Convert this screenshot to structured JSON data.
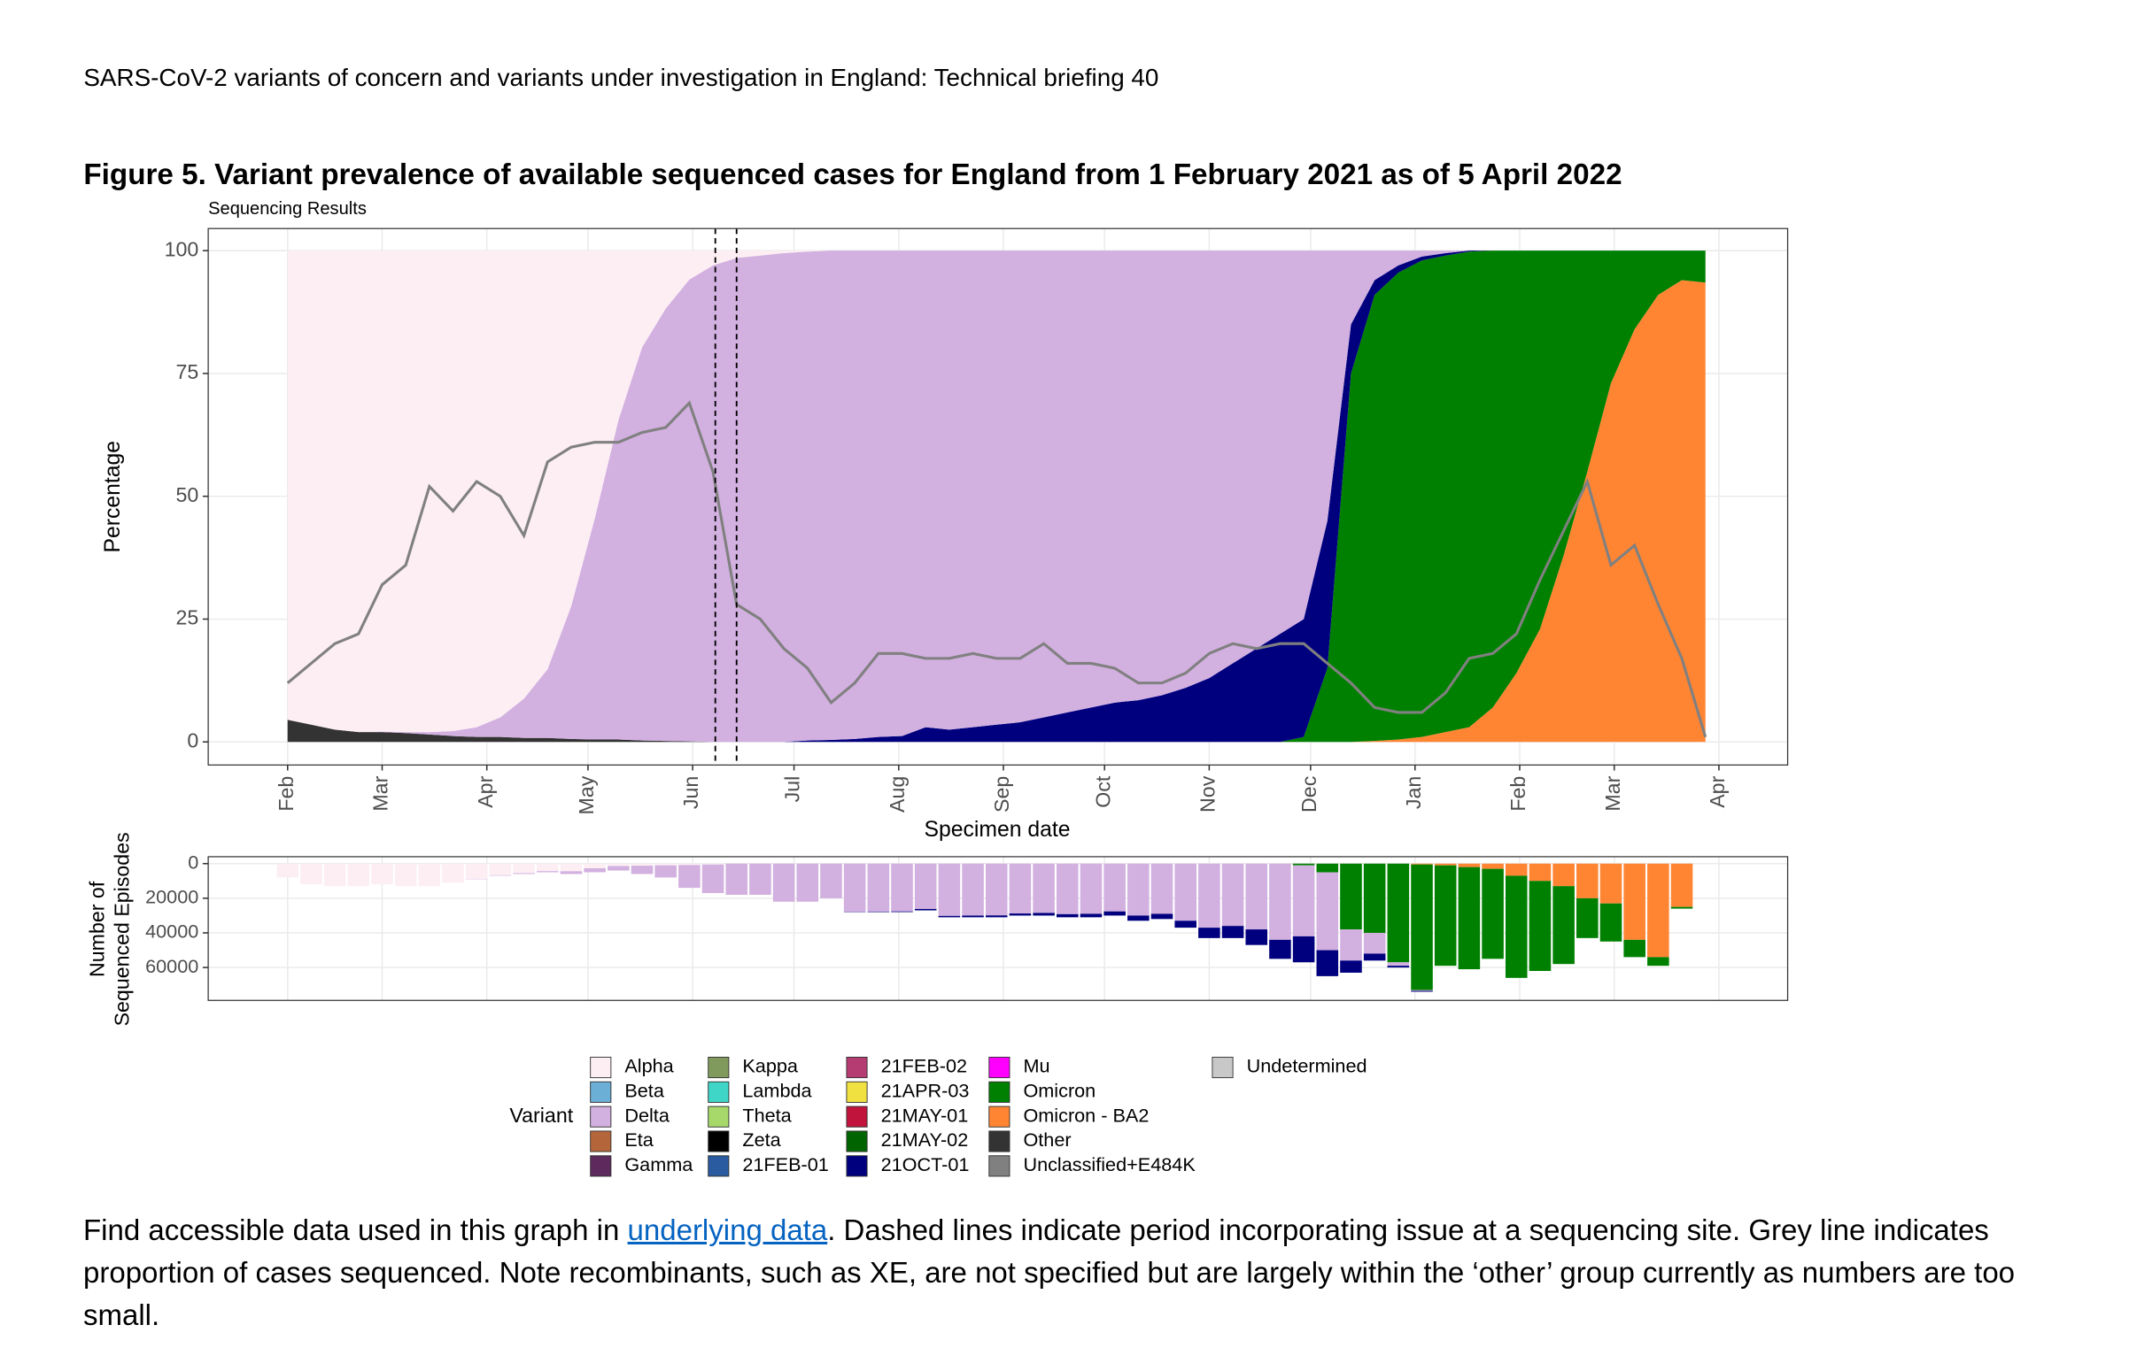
{
  "header": {
    "text": "SARS-CoV-2 variants of concern and variants under investigation in England: Technical briefing 40"
  },
  "figure_title": "Figure 5. Variant prevalence of available sequenced cases for England from 1 February 2021 as of 5 April 2022",
  "chart_data": [
    {
      "type": "area",
      "subtitle": "Sequencing Results",
      "xlabel": "Specimen date",
      "ylabel": "Percentage",
      "x": [
        0,
        1,
        2,
        3,
        4,
        5,
        6,
        7,
        8,
        9,
        10,
        11,
        12,
        13,
        14,
        15,
        16,
        17,
        18,
        19,
        20,
        21,
        22,
        23,
        24,
        25,
        26,
        27,
        28,
        29,
        30,
        31,
        32,
        33,
        34,
        35,
        36,
        37,
        38,
        39,
        40,
        41,
        42,
        43,
        44,
        45,
        46,
        47,
        48,
        49,
        50,
        51,
        52,
        53,
        54,
        55,
        56,
        57,
        58,
        59,
        60
      ],
      "xlim": [
        -3.36,
        63.48
      ],
      "xticks": [
        {
          "value": 0,
          "label": "Feb"
        },
        {
          "value": 4,
          "label": "Mar"
        },
        {
          "value": 8.43,
          "label": "Apr"
        },
        {
          "value": 12.71,
          "label": "May"
        },
        {
          "value": 17.14,
          "label": "Jun"
        },
        {
          "value": 21.43,
          "label": "Jul"
        },
        {
          "value": 25.86,
          "label": "Aug"
        },
        {
          "value": 30.29,
          "label": "Sep"
        },
        {
          "value": 34.57,
          "label": "Oct"
        },
        {
          "value": 39,
          "label": "Nov"
        },
        {
          "value": 43.29,
          "label": "Dec"
        },
        {
          "value": 47.71,
          "label": "Jan"
        },
        {
          "value": 52.14,
          "label": "Feb"
        },
        {
          "value": 56.14,
          "label": "Mar"
        },
        {
          "value": 60.57,
          "label": "Apr"
        }
      ],
      "ylim": [
        -4.7,
        104.5
      ],
      "yticks": [
        0,
        25,
        50,
        75,
        100
      ],
      "grid": true,
      "stacked": true,
      "vlines": [
        18.1,
        19.0
      ],
      "series": [
        {
          "name": "Other",
          "color": "#333333",
          "values": [
            4.5,
            3.5,
            2.5,
            2,
            2,
            1.8,
            1.5,
            1.2,
            1,
            1,
            0.8,
            0.8,
            0.6,
            0.5,
            0.5,
            0.3,
            0.2,
            0.1,
            0,
            0,
            0,
            0,
            0,
            0,
            0,
            0,
            0,
            0,
            0,
            0,
            0,
            0,
            0,
            0,
            0,
            0,
            0,
            0,
            0,
            0,
            0,
            0,
            0,
            0,
            0,
            0,
            0,
            0,
            0,
            0,
            0,
            0,
            0,
            0,
            0,
            0,
            0,
            0,
            0,
            0,
            0
          ]
        },
        {
          "name": "Omicron - BA2",
          "color": "#ff8533",
          "values": [
            0,
            0,
            0,
            0,
            0,
            0,
            0,
            0,
            0,
            0,
            0,
            0,
            0,
            0,
            0,
            0,
            0,
            0,
            0,
            0,
            0,
            0,
            0,
            0,
            0,
            0,
            0,
            0,
            0,
            0,
            0,
            0,
            0,
            0,
            0,
            0,
            0,
            0,
            0,
            0,
            0,
            0,
            0,
            0,
            0,
            0,
            0.2,
            0.5,
            1,
            2,
            3,
            7,
            14,
            23,
            38,
            55,
            73,
            84,
            91,
            94,
            93.5
          ]
        },
        {
          "name": "Omicron",
          "color": "#008000",
          "values": [
            0,
            0,
            0,
            0,
            0,
            0,
            0,
            0,
            0,
            0,
            0,
            0,
            0,
            0,
            0,
            0,
            0,
            0,
            0,
            0,
            0,
            0,
            0,
            0,
            0,
            0,
            0,
            0,
            0,
            0,
            0,
            0,
            0,
            0,
            0,
            0,
            0,
            0,
            0,
            0,
            0,
            0,
            0,
            1,
            15,
            75,
            90.8,
            95,
            97,
            97,
            96.8,
            93,
            86,
            77,
            62,
            45,
            27,
            16,
            9,
            6,
            6.5
          ]
        },
        {
          "name": "21OCT-01",
          "color": "#00007f",
          "values": [
            0,
            0,
            0,
            0,
            0,
            0,
            0,
            0,
            0,
            0,
            0,
            0,
            0,
            0,
            0,
            0,
            0,
            0,
            0,
            0,
            0,
            0,
            0.3,
            0.4,
            0.6,
            1,
            1.2,
            3,
            2.5,
            3,
            3.5,
            4,
            5,
            6,
            7,
            8,
            8.5,
            9.5,
            11,
            13,
            16,
            19,
            22,
            24,
            30,
            10,
            3,
            1.5,
            0.8,
            0.5,
            0.2,
            0,
            0,
            0,
            0,
            0,
            0,
            0,
            0,
            0,
            0
          ]
        },
        {
          "name": "Delta",
          "color": "#d2b0e0",
          "values": [
            0,
            0,
            0,
            0,
            0.1,
            0.2,
            0.5,
            1,
            2,
            4,
            8,
            14,
            27,
            45,
            65,
            80,
            88,
            94,
            97,
            98.5,
            99,
            99.5,
            99.5,
            99.6,
            99.4,
            99,
            98.8,
            97,
            97.5,
            97,
            96.5,
            96,
            95,
            94,
            93,
            92,
            91.5,
            90.5,
            89,
            87,
            84,
            81,
            78,
            75,
            55,
            15,
            6,
            3,
            1.2,
            0.5,
            0,
            0,
            0,
            0,
            0,
            0,
            0,
            0,
            0,
            0,
            0
          ]
        },
        {
          "name": "Alpha",
          "color": "#fdeef4",
          "values": [
            95.5,
            96.5,
            97.5,
            98,
            97.9,
            98,
            98,
            97.8,
            97,
            95,
            91.2,
            85.2,
            72.4,
            54.5,
            34.5,
            19.7,
            11.8,
            5.9,
            3,
            1.5,
            1,
            0.5,
            0.2,
            0,
            0,
            0,
            0,
            0,
            0,
            0,
            0,
            0,
            0,
            0,
            0,
            0,
            0,
            0,
            0,
            0,
            0,
            0,
            0,
            0,
            0,
            0,
            0,
            0,
            0,
            0,
            0,
            0,
            0,
            0,
            0,
            0,
            0,
            0,
            0,
            0,
            0
          ]
        }
      ],
      "overlay": {
        "color": "#808080",
        "values": [
          12,
          16,
          20,
          22,
          32,
          36,
          52,
          47,
          53,
          50,
          42,
          57,
          60,
          61,
          61,
          63,
          64,
          69,
          55,
          28,
          25,
          19,
          15,
          8,
          12,
          18,
          18,
          17,
          17,
          18,
          17,
          17,
          20,
          16,
          16,
          15,
          12,
          12,
          14,
          18,
          20,
          19,
          20,
          20,
          16,
          12,
          7,
          6,
          6,
          10,
          17,
          18,
          22,
          33,
          43,
          53,
          36,
          40,
          28,
          17,
          1
        ]
      },
      "legend": {
        "title": "Variant",
        "items": [
          {
            "name": "Alpha",
            "color": "#fdeef4"
          },
          {
            "name": "Beta",
            "color": "#6baed6"
          },
          {
            "name": "Delta",
            "color": "#d2b0e0"
          },
          {
            "name": "Eta",
            "color": "#b5653a"
          },
          {
            "name": "Gamma",
            "color": "#5e2a5e"
          },
          {
            "name": "Kappa",
            "color": "#7f9a5c"
          },
          {
            "name": "Lambda",
            "color": "#3fd6c8"
          },
          {
            "name": "Theta",
            "color": "#a6d96a"
          },
          {
            "name": "Zeta",
            "color": "#000000"
          },
          {
            "name": "21FEB-01",
            "color": "#2a5ba0"
          },
          {
            "name": "21FEB-02",
            "color": "#b43c73"
          },
          {
            "name": "21APR-03",
            "color": "#f0e040"
          },
          {
            "name": "21MAY-01",
            "color": "#c0143c"
          },
          {
            "name": "21MAY-02",
            "color": "#006400"
          },
          {
            "name": "21OCT-01",
            "color": "#00007f"
          },
          {
            "name": "Mu",
            "color": "#ff00ff"
          },
          {
            "name": "Omicron",
            "color": "#008000"
          },
          {
            "name": "Omicron - BA2",
            "color": "#ff8533"
          },
          {
            "name": "Other",
            "color": "#333333"
          },
          {
            "name": "Unclassified+E484K",
            "color": "#808080"
          },
          {
            "name": "Undetermined",
            "color": "#c8c8c8"
          }
        ]
      }
    },
    {
      "type": "bar",
      "ylabel": [
        "Number of",
        "Sequenced Episodes"
      ],
      "x": [
        0,
        1,
        2,
        3,
        4,
        5,
        6,
        7,
        8,
        9,
        10,
        11,
        12,
        13,
        14,
        15,
        16,
        17,
        18,
        19,
        20,
        21,
        22,
        23,
        24,
        25,
        26,
        27,
        28,
        29,
        30,
        31,
        32,
        33,
        34,
        35,
        36,
        37,
        38,
        39,
        40,
        41,
        42,
        43,
        44,
        45,
        46,
        47,
        48,
        49,
        50,
        51,
        52,
        53,
        54,
        55,
        56,
        57,
        58,
        59
      ],
      "xlim": [
        -3.36,
        63.48
      ],
      "xticks": [
        0,
        4,
        8.43,
        12.71,
        17.14,
        21.43,
        25.86,
        30.29,
        34.57,
        39,
        43.29,
        47.71,
        52.14,
        56.14,
        60.57
      ],
      "ylim": [
        -4000,
        79000
      ],
      "yreverse": true,
      "yticks": [
        0,
        20000,
        40000,
        60000
      ],
      "grid": true,
      "stacked": true,
      "series": [
        {
          "name": "Omicron - BA2",
          "color": "#ff8533",
          "values": [
            0,
            0,
            0,
            0,
            0,
            0,
            0,
            0,
            0,
            0,
            0,
            0,
            0,
            0,
            0,
            0,
            0,
            0,
            0,
            0,
            0,
            0,
            0,
            0,
            0,
            0,
            0,
            0,
            0,
            0,
            0,
            0,
            0,
            0,
            0,
            0,
            0,
            0,
            0,
            0,
            0,
            0,
            0,
            0,
            0,
            0,
            0,
            0,
            500,
            1000,
            2000,
            3000,
            7000,
            10000,
            13000,
            20000,
            23000,
            44000,
            54000,
            25000
          ]
        },
        {
          "name": "Omicron",
          "color": "#008000",
          "values": [
            0,
            0,
            0,
            0,
            0,
            0,
            0,
            0,
            0,
            0,
            0,
            0,
            0,
            0,
            0,
            0,
            0,
            0,
            0,
            0,
            0,
            0,
            0,
            0,
            0,
            0,
            0,
            0,
            0,
            0,
            0,
            0,
            0,
            0,
            0,
            0,
            0,
            0,
            0,
            0,
            0,
            0,
            0,
            1000,
            5000,
            38000,
            40000,
            57000,
            72500,
            58000,
            59000,
            52000,
            59000,
            52000,
            45000,
            23000,
            22000,
            10000,
            5000,
            1000
          ]
        },
        {
          "name": "Alpha",
          "color": "#fdeef4",
          "values": [
            8000,
            12000,
            13000,
            13000,
            12000,
            13000,
            13000,
            11000,
            8800,
            6700,
            5500,
            4300,
            4400,
            2700,
            1400,
            1200,
            1000,
            800,
            500,
            0,
            0,
            0,
            0,
            0,
            0,
            0,
            0,
            0,
            0,
            0,
            0,
            0,
            0,
            0,
            0,
            0,
            0,
            0,
            0,
            0,
            0,
            0,
            0,
            0,
            0,
            0,
            0,
            0,
            0,
            0,
            0,
            0,
            0,
            0,
            0,
            0,
            0,
            0,
            0,
            0
          ]
        },
        {
          "name": "Delta",
          "color": "#d2b0e0",
          "values": [
            0,
            0,
            0,
            0,
            0,
            0,
            0,
            0,
            200,
            300,
            500,
            700,
            1600,
            2300,
            2600,
            4800,
            7000,
            13200,
            16500,
            18000,
            18000,
            22000,
            22000,
            20000,
            27800,
            27700,
            27600,
            26200,
            30200,
            30000,
            29900,
            28800,
            28500,
            29200,
            29000,
            27600,
            30000,
            29000,
            33000,
            37000,
            36000,
            38000,
            44000,
            41000,
            45000,
            18000,
            12000,
            2000,
            500,
            0,
            0,
            0,
            0,
            0,
            0,
            0,
            0,
            0,
            0,
            0
          ]
        },
        {
          "name": "21OCT-01",
          "color": "#00007f",
          "values": [
            0,
            0,
            0,
            0,
            0,
            0,
            0,
            0,
            0,
            0,
            0,
            0,
            0,
            0,
            0,
            0,
            0,
            0,
            0,
            0,
            0,
            0,
            0,
            0,
            200,
            300,
            400,
            800,
            800,
            1000,
            1100,
            1200,
            1500,
            1800,
            2000,
            2400,
            3000,
            3000,
            4000,
            6000,
            7000,
            9000,
            11000,
            15000,
            15000,
            7000,
            4000,
            1000,
            500,
            0,
            0,
            0,
            0,
            0,
            0,
            0,
            0,
            0,
            0,
            0
          ]
        }
      ]
    }
  ],
  "caption": {
    "before": "Find accessible data used in this graph in ",
    "link": "underlying data",
    "after": ". Dashed lines indicate period incorporating issue at a sequencing site. Grey line indicates proportion of cases sequenced. Note recombinants, such as XE, are not specified but are largely within the ‘other’ group currently as numbers are too small."
  }
}
